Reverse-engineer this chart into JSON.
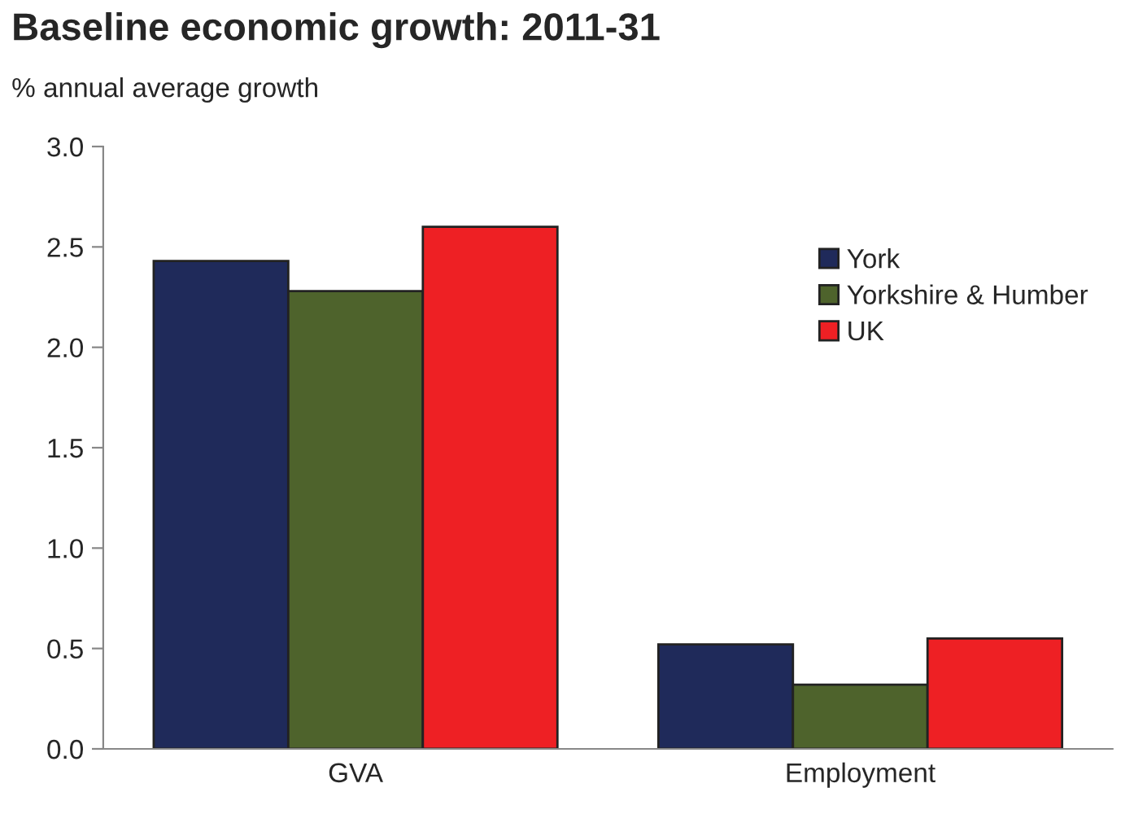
{
  "chart_data": {
    "type": "bar",
    "title": "Baseline economic growth: 2011-31",
    "ylabel": "% annual average growth",
    "categories": [
      "GVA",
      "Employment"
    ],
    "series": [
      {
        "name": "York",
        "color": "#1f2a5a",
        "values": [
          2.43,
          0.52
        ]
      },
      {
        "name": "Yorkshire & Humber",
        "color": "#4e632c",
        "values": [
          2.28,
          0.32
        ]
      },
      {
        "name": "UK",
        "color": "#ee2024",
        "values": [
          2.6,
          0.55
        ]
      }
    ],
    "ylim": [
      0,
      3
    ],
    "yticks": [
      {
        "value": 0,
        "label": "0.0"
      },
      {
        "value": 0.5,
        "label": "0.5"
      },
      {
        "value": 1,
        "label": "1.0"
      },
      {
        "value": 1.5,
        "label": "1.5"
      },
      {
        "value": 2,
        "label": "2.0"
      },
      {
        "value": 2.5,
        "label": "2.5"
      },
      {
        "value": 3,
        "label": "3.0"
      }
    ],
    "grid": false,
    "legend": "right"
  }
}
